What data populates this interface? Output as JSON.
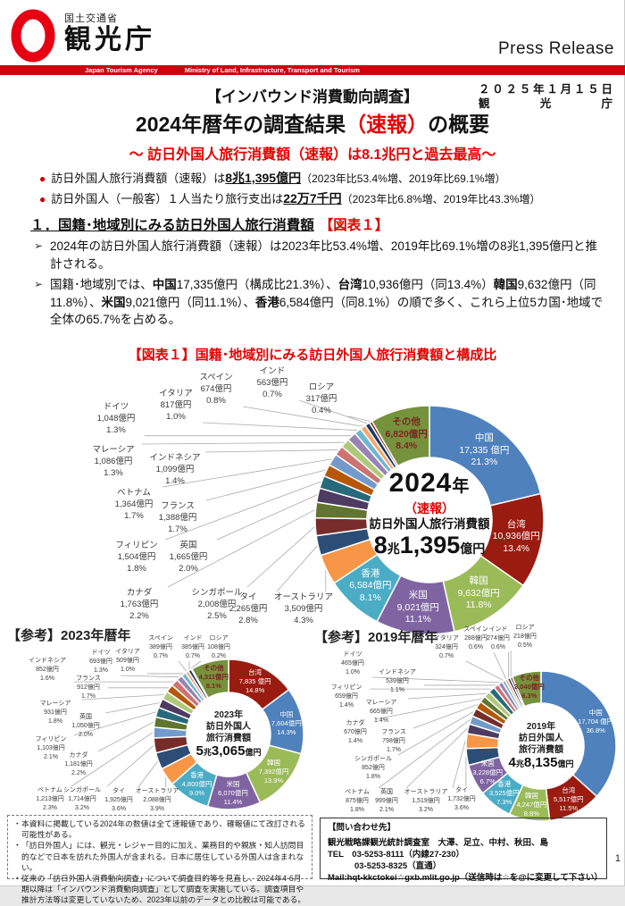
{
  "header": {
    "ministry": "国土交通省",
    "agency": "観光庁",
    "press_release": "Press Release",
    "bar_text_1": "Japan Tourism Agency",
    "bar_text_2": "Ministry of Land, Infrastructure, Transport and Tourism"
  },
  "masthead": {
    "survey_tag": "【インバウンド消費動向調査】",
    "date": "２０２５年１月１５日",
    "org": "観光庁",
    "title_pre": "2024年暦年の調査結果",
    "title_red": "（速報）",
    "title_post": "の概要",
    "subtitle": "～ 訪日外国人旅行消費額（速報）は8.1兆円と過去最高～"
  },
  "bullets": [
    {
      "pre": "訪日外国人旅行消費額（速報）は",
      "strong": "8兆1,395億円",
      "post": "（2023年比53.4%増、2019年比69.1%増）"
    },
    {
      "pre": "訪日外国人（一般客）１人当たり旅行支出は",
      "strong": "22万7千円",
      "post": "（2023年比6.8%増、2019年比43.3%増）"
    }
  ],
  "section1": {
    "heading": "１．国籍･地域別にみる訪日外国人旅行消費額",
    "figure_ref": "【図表１】",
    "point1": "2024年の訪日外国人旅行消費額（速報）は2023年比53.4%増、2019年比69.1%増の8兆1,395億円と推計される。",
    "point2": {
      "s1": "国籍･地域別では、",
      "b1": "中国",
      "s2": "17,335億円（構成比21.3%）、",
      "b2": "台湾",
      "s3": "10,936億円（同13.4%）",
      "b3": "韓国",
      "s4": "9,632億円（同11.8%）、",
      "b4": "米国",
      "s5": "9,021億円（同11.1%）、",
      "b5": "香港",
      "s6": "6,584億円（同8.1%）の順で多く、これら上位5カ国･地域で全体の65.7%を占める。"
    }
  },
  "figure_title": "【図表１】国籍･地域別にみる訪日外国人旅行消費額と構成比",
  "ref_2023_heading": "【参考】2023年暦年",
  "ref_2019_heading": "【参考】2019年暦年",
  "chart_data": [
    {
      "type": "pie",
      "title": "2024年（速報）訪日外国人旅行消費額",
      "center": {
        "year": "2024",
        "year_suffix": "年",
        "flash": "（速報）",
        "label": "訪日外国人旅行消費額",
        "amt_big1": "8",
        "amt_small1": "兆",
        "amt_big2": "1,395",
        "amt_small2": "億円"
      },
      "unit": "億円",
      "series": [
        {
          "name": "中国",
          "value": "17,335 億円",
          "pct": 21.3
        },
        {
          "name": "台湾",
          "value": "10,936億円",
          "pct": 13.4
        },
        {
          "name": "韓国",
          "value": "9,632億円",
          "pct": 11.8
        },
        {
          "name": "米国",
          "value": "9,021億円",
          "pct": 11.1
        },
        {
          "name": "香港",
          "value": "6,584億円",
          "pct": 8.1
        },
        {
          "name": "オーストラリア",
          "value": "3,509億円",
          "pct": 4.3
        },
        {
          "name": "タイ",
          "value": "2,265億円",
          "pct": 2.8
        },
        {
          "name": "シンガポール",
          "value": "2,008億円",
          "pct": 2.5
        },
        {
          "name": "カナダ",
          "value": "1,763億円",
          "pct": 2.2
        },
        {
          "name": "英国",
          "value": "1,665億円",
          "pct": 2.0
        },
        {
          "name": "フィリピン",
          "value": "1,504億円",
          "pct": 1.8
        },
        {
          "name": "フランス",
          "value": "1,388億円",
          "pct": 1.7
        },
        {
          "name": "ベトナム",
          "value": "1,364億円",
          "pct": 1.7
        },
        {
          "name": "インドネシア",
          "value": "1,099億円",
          "pct": 1.4
        },
        {
          "name": "マレーシア",
          "value": "1,086億円",
          "pct": 1.3
        },
        {
          "name": "ドイツ",
          "value": "1,048億円",
          "pct": 1.3
        },
        {
          "name": "イタリア",
          "value": "817億円",
          "pct": 1.0
        },
        {
          "name": "スペイン",
          "value": "674億円",
          "pct": 0.8
        },
        {
          "name": "インド",
          "value": "563億円",
          "pct": 0.7
        },
        {
          "name": "ロシア",
          "value": "317億円",
          "pct": 0.4
        },
        {
          "name": "その他",
          "value": "6,820億円",
          "pct": 8.4
        }
      ]
    },
    {
      "type": "pie",
      "title": "2023年 訪日外国人旅行消費額",
      "center": {
        "lines": [
          "2023年",
          "訪日外国人",
          "旅行消費額"
        ],
        "amt_big1": "5",
        "amt_small1": "兆",
        "amt_big2": "3,065",
        "amt_small2": "億円"
      },
      "unit": "億円",
      "series": [
        {
          "name": "台湾",
          "value": "7,835 億円",
          "pct": 14.8
        },
        {
          "name": "中国",
          "value": "7,604億円",
          "pct": 14.3
        },
        {
          "name": "韓国",
          "value": "7,392億円",
          "pct": 13.9
        },
        {
          "name": "米国",
          "value": "6,070億円",
          "pct": 11.4
        },
        {
          "name": "香港",
          "value": "4,800億円",
          "pct": 9.0
        },
        {
          "name": "オーストラリア",
          "value": "2,088億円",
          "pct": 3.9
        },
        {
          "name": "タイ",
          "value": "1,925億円",
          "pct": 3.6
        },
        {
          "name": "シンガポール",
          "value": "1,714億円",
          "pct": 3.2
        },
        {
          "name": "ベトナム",
          "value": "1,213億円",
          "pct": 2.3
        },
        {
          "name": "カナダ",
          "value": "1,181億円",
          "pct": 2.2
        },
        {
          "name": "フィリピン",
          "value": "1,103億円",
          "pct": 2.1
        },
        {
          "name": "英国",
          "value": "1,050億円",
          "pct": 2.0
        },
        {
          "name": "マレーシア",
          "value": "931億円",
          "pct": 1.8
        },
        {
          "name": "フランス",
          "value": "912億円",
          "pct": 1.7
        },
        {
          "name": "インドネシア",
          "value": "852億円",
          "pct": 1.6
        },
        {
          "name": "ドイツ",
          "value": "693億円",
          "pct": 1.3
        },
        {
          "name": "イタリア",
          "value": "509億円",
          "pct": 1.0
        },
        {
          "name": "スペイン",
          "value": "389億円",
          "pct": 0.7
        },
        {
          "name": "インド",
          "value": "385億円",
          "pct": 0.7
        },
        {
          "name": "ロシア",
          "value": "108億円",
          "pct": 0.2
        },
        {
          "name": "その他",
          "value": "4,311億円",
          "pct": 8.1
        }
      ]
    },
    {
      "type": "pie",
      "title": "2019年 訪日外国人旅行消費額",
      "center": {
        "lines": [
          "2019年",
          "訪日外国人",
          "旅行消費額"
        ],
        "amt_big1": "4",
        "amt_small1": "兆",
        "amt_big2": "8,135",
        "amt_small2": "億円"
      },
      "unit": "億円",
      "series": [
        {
          "name": "中国",
          "value": "17,704 億円",
          "pct": 36.8
        },
        {
          "name": "台湾",
          "value": "5,517億円",
          "pct": 11.5
        },
        {
          "name": "韓国",
          "value": "4,247億円",
          "pct": 8.8
        },
        {
          "name": "香港",
          "value": "3,525億円",
          "pct": 7.3
        },
        {
          "name": "米国",
          "value": "3,228億円",
          "pct": 6.7
        },
        {
          "name": "タイ",
          "value": "1,732億円",
          "pct": 3.6
        },
        {
          "name": "オーストラリア",
          "value": "1,519億円",
          "pct": 3.2
        },
        {
          "name": "英国",
          "value": "999億円",
          "pct": 2.1
        },
        {
          "name": "ベトナム",
          "value": "875億円",
          "pct": 1.8
        },
        {
          "name": "シンガポール",
          "value": "852億円",
          "pct": 1.8
        },
        {
          "name": "フランス",
          "value": "798億円",
          "pct": 1.7
        },
        {
          "name": "カナダ",
          "value": "670億円",
          "pct": 1.4
        },
        {
          "name": "マレーシア",
          "value": "665億円",
          "pct": 1.4
        },
        {
          "name": "フィリピン",
          "value": "659億円",
          "pct": 1.4
        },
        {
          "name": "インドネシア",
          "value": "539億円",
          "pct": 1.1
        },
        {
          "name": "ドイツ",
          "value": "465億円",
          "pct": 1.0
        },
        {
          "name": "イタリア",
          "value": "324億円",
          "pct": 0.7
        },
        {
          "name": "スペイン",
          "value": "288億円",
          "pct": 0.6
        },
        {
          "name": "インド",
          "value": "274億円",
          "pct": 0.6
        },
        {
          "name": "ロシア",
          "value": "218億円",
          "pct": 0.5
        },
        {
          "name": "その他",
          "value": "3,040億円",
          "pct": 6.3
        }
      ]
    }
  ],
  "colors": {
    "accent_red": "#ce0010",
    "text_red": "#e60000",
    "中国": "#4F81BD",
    "台湾": "#9A1B10",
    "韓国": "#9BBB59",
    "米国": "#8064A2",
    "香港": "#4BACC6",
    "オーストラリア": "#F79646",
    "タイ": "#2C4D75",
    "シンガポール": "#772C2A",
    "カナダ": "#5F7530",
    "英国": "#4D3B62",
    "フィリピン": "#276A7C",
    "フランス": "#B65708",
    "ベトナム": "#729ACA",
    "インドネシア": "#CD7371",
    "マレーシア": "#AFC97A",
    "ドイツ": "#9983B5",
    "イタリア": "#6FB7D0",
    "スペイン": "#FBA46D",
    "インド": "#1F3864",
    "ロシア": "#7D2B24",
    "その他": "#76923C",
    "other_label": "#7B2423"
  },
  "notes": [
    "本資料に掲載している2024年の数値は全て速報値であり、確報値にて改訂される可能性がある。",
    "「訪日外国人」には、観光・レジャー目的に加え、業務目的や親族・知人訪問目的などで日本を訪れた外国人が含まれる。日本に居住している外国人は含まれない。",
    "従来の「訪日外国人消費動向調査」について調査目的等を見直し、2024年4-6月期以降は「インバウンド消費動向調査」として調査を実施している。調査項目や推計方法等は変更していないため、2023年以前のデータとの比較は可能である。"
  ],
  "contact": {
    "heading": "【問い合わせ先】",
    "dept": "観光戦略課観光統計調査室　大澤、足立、中村、秋田、島",
    "tel_label": "TEL",
    "tel1": "03-5253-8111（内線27-230）",
    "tel2": "03-5253-8325（直通）",
    "mail": "Mail:hqt-kkctokei☆gxb.mlit.go.jp（送信時は☆を@に変更して下さい）"
  },
  "page_number": "1"
}
